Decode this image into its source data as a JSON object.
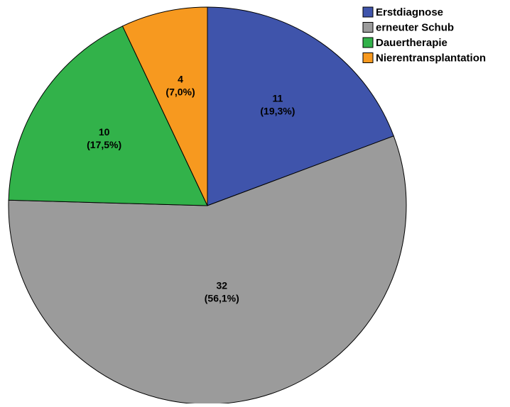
{
  "chart_data": {
    "type": "pie",
    "title": "",
    "categories": [
      "Erstdiagnose",
      "erneuter Schub",
      "Dauertherapie",
      "Nierentransplantation"
    ],
    "values": [
      11,
      32,
      10,
      4
    ],
    "percent_labels": [
      "(19,3%)",
      "(56,1%)",
      "(17,5%)",
      "(7,0%)"
    ],
    "count_labels": [
      "11",
      "32",
      "10",
      "4"
    ],
    "colors": [
      "#3f54ab",
      "#9b9b9b",
      "#32b24a",
      "#f7991f"
    ],
    "start_angle": "12 o'clock",
    "direction": "clockwise",
    "legend": "top-right"
  }
}
